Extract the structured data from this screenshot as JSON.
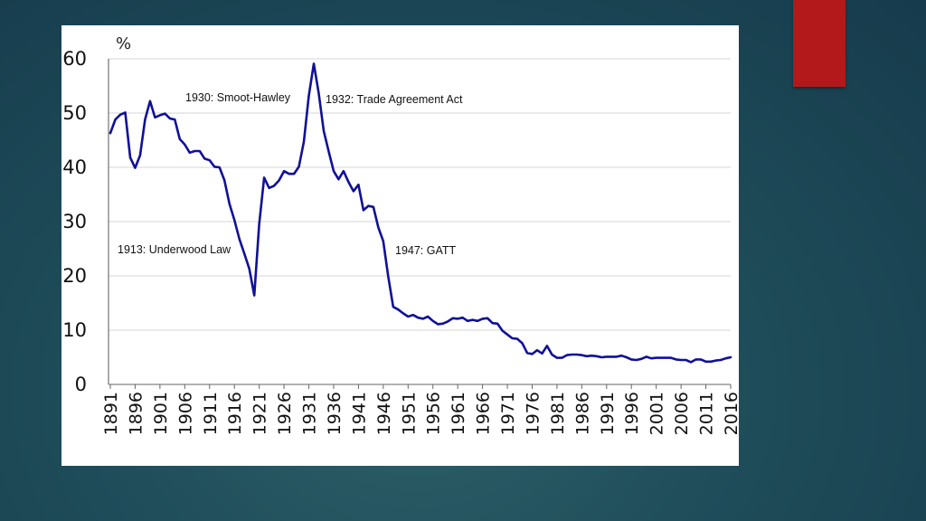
{
  "slide": {
    "accent_color": "#b3191a"
  },
  "chart_data": {
    "type": "line",
    "ylabel": "%",
    "ylim": [
      0,
      60
    ],
    "xlim": [
      1891,
      2016
    ],
    "yticks": [
      0,
      10,
      20,
      30,
      40,
      50,
      60
    ],
    "xticks": [
      "1891",
      "1896",
      "1901",
      "1906",
      "1911",
      "1916",
      "1921",
      "1926",
      "1931",
      "1936",
      "1941",
      "1946",
      "1951",
      "1956",
      "1961",
      "1966",
      "1971",
      "1976",
      "1981",
      "1986",
      "1991",
      "1996",
      "2001",
      "2006",
      "2011",
      "2016"
    ],
    "grid": true,
    "line_color": "#10109a",
    "series": [
      {
        "x": [
          1891,
          1892,
          1893,
          1894,
          1895,
          1896,
          1897,
          1898,
          1899,
          1900,
          1901,
          1902,
          1903,
          1904,
          1905,
          1906,
          1907,
          1908,
          1909,
          1910,
          1911,
          1912,
          1913,
          1914,
          1915,
          1916,
          1917,
          1918,
          1919,
          1920,
          1921,
          1922,
          1923,
          1924,
          1925,
          1926,
          1927,
          1928,
          1929,
          1930,
          1931,
          1932,
          1933,
          1934,
          1935,
          1936,
          1937,
          1938,
          1939,
          1940,
          1941,
          1942,
          1943,
          1944,
          1945,
          1946,
          1947,
          1948,
          1949,
          1950,
          1951,
          1952,
          1953,
          1954,
          1955,
          1956,
          1957,
          1958,
          1959,
          1960,
          1961,
          1962,
          1963,
          1964,
          1965,
          1966,
          1967,
          1968,
          1969,
          1970,
          1971,
          1972,
          1973,
          1974,
          1975,
          1976,
          1977,
          1978,
          1979,
          1980,
          1981,
          1982,
          1983,
          1984,
          1985,
          1986,
          1987,
          1988,
          1989,
          1990,
          1991,
          1992,
          1993,
          1994,
          1995,
          1996,
          1997,
          1998,
          1999,
          2000,
          2001,
          2002,
          2003,
          2004,
          2005,
          2006,
          2007,
          2008,
          2009,
          2010,
          2011,
          2012,
          2013,
          2014,
          2015,
          2016
        ],
        "values": [
          46.3,
          48.8,
          49.7,
          50.1,
          41.8,
          39.9,
          42.2,
          48.8,
          52.2,
          49.2,
          49.6,
          49.9,
          49.0,
          48.8,
          45.2,
          44.2,
          42.7,
          43.0,
          43.0,
          41.6,
          41.3,
          40.1,
          40.0,
          37.6,
          33.3,
          30.3,
          26.8,
          24.1,
          21.3,
          16.4,
          29.5,
          38.1,
          36.2,
          36.6,
          37.6,
          39.3,
          38.8,
          38.8,
          40.1,
          44.7,
          53.2,
          59.1,
          53.6,
          46.7,
          42.9,
          39.3,
          37.8,
          39.3,
          37.3,
          35.6,
          36.8,
          32.1,
          32.9,
          32.7,
          28.9,
          26.4,
          19.9,
          14.3,
          13.8,
          13.1,
          12.5,
          12.8,
          12.3,
          12.1,
          12.5,
          11.7,
          11.1,
          11.2,
          11.6,
          12.2,
          12.1,
          12.3,
          11.7,
          11.9,
          11.7,
          12.1,
          12.2,
          11.3,
          11.2,
          9.9,
          9.2,
          8.5,
          8.4,
          7.6,
          5.8,
          5.6,
          6.3,
          5.7,
          7.1,
          5.5,
          4.9,
          4.9,
          5.4,
          5.5,
          5.5,
          5.4,
          5.2,
          5.3,
          5.2,
          5.0,
          5.1,
          5.1,
          5.1,
          5.3,
          5.0,
          4.6,
          4.5,
          4.7,
          5.1,
          4.8,
          4.9,
          4.9,
          4.9,
          4.9,
          4.6,
          4.5,
          4.5,
          4.1,
          4.6,
          4.6,
          4.2,
          4.2,
          4.4,
          4.5,
          4.8,
          5.0
        ]
      }
    ],
    "annotations": [
      {
        "text": "1930: Smoot-Hawley"
      },
      {
        "text": "1932: Trade Agreement Act"
      },
      {
        "text": "1913: Underwood Law"
      },
      {
        "text": "1947: GATT"
      }
    ]
  }
}
